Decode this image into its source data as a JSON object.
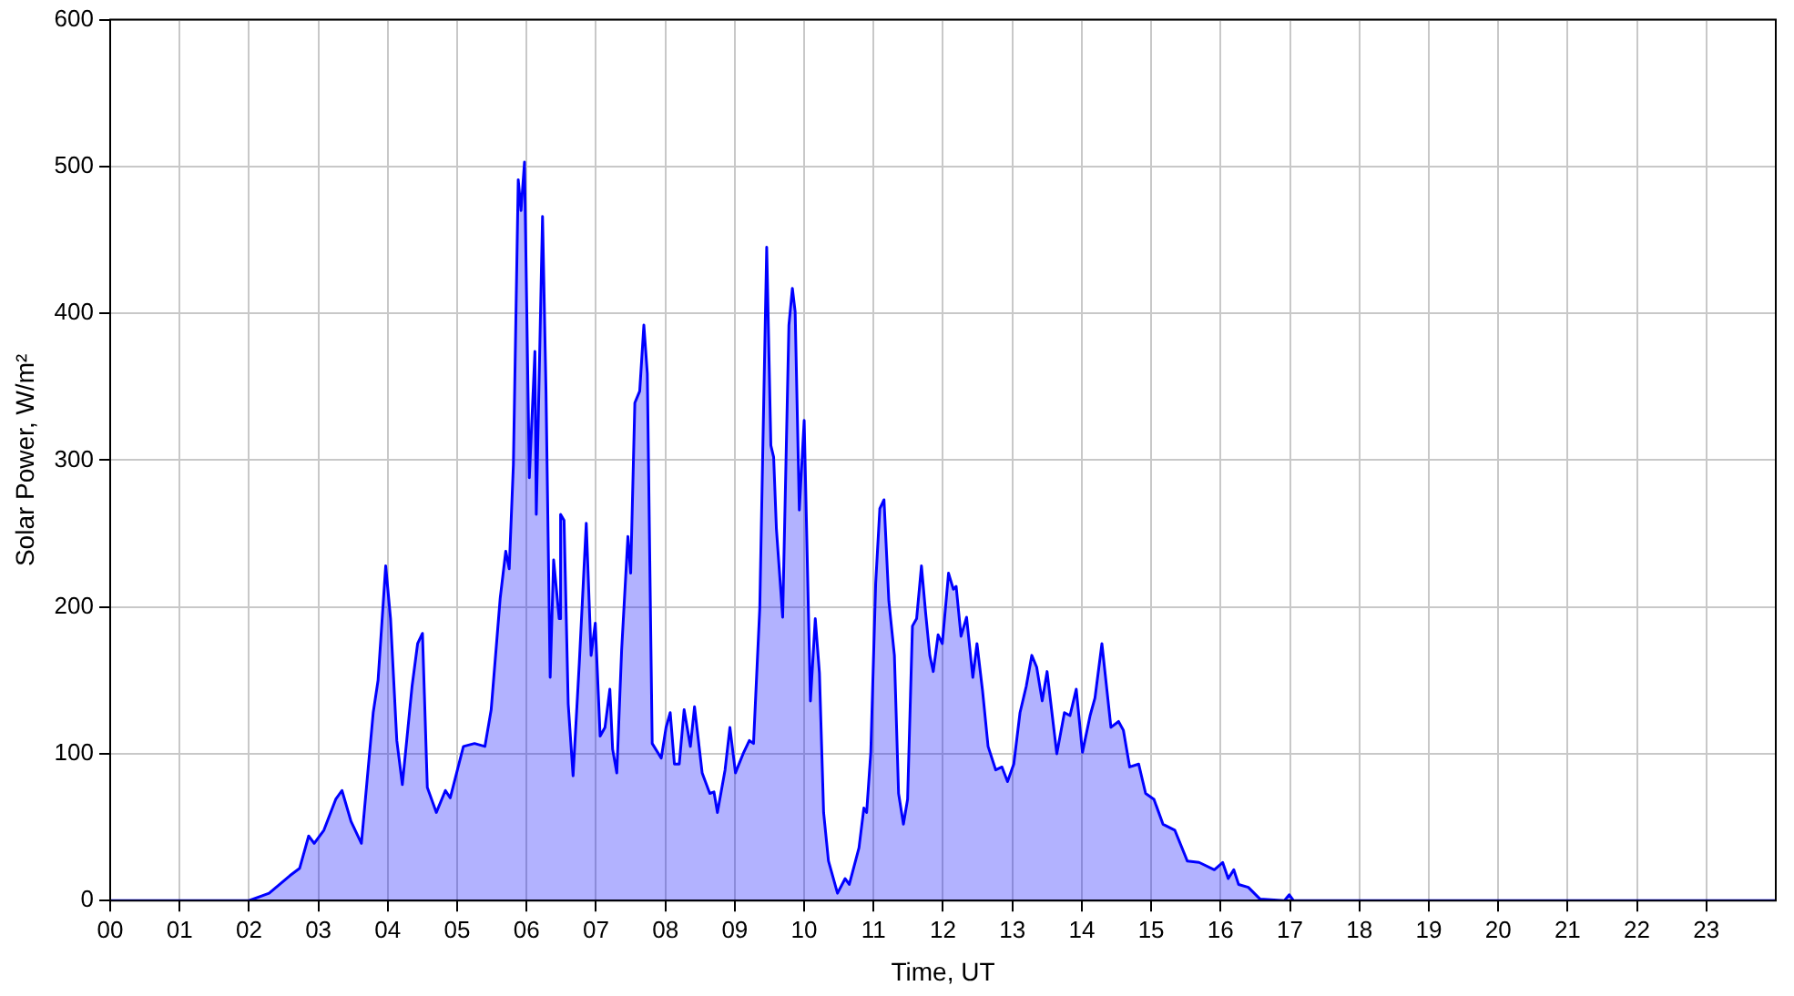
{
  "chart_data": {
    "type": "area",
    "xlabel": "Time, UT",
    "ylabel": "Solar Power, W/m²",
    "xlim": [
      0,
      24
    ],
    "ylim": [
      0,
      600
    ],
    "xticks": [
      {
        "value": 0,
        "label": "00"
      },
      {
        "value": 1,
        "label": "01"
      },
      {
        "value": 2,
        "label": "02"
      },
      {
        "value": 3,
        "label": "03"
      },
      {
        "value": 4,
        "label": "04"
      },
      {
        "value": 5,
        "label": "05"
      },
      {
        "value": 6,
        "label": "06"
      },
      {
        "value": 7,
        "label": "07"
      },
      {
        "value": 8,
        "label": "08"
      },
      {
        "value": 9,
        "label": "09"
      },
      {
        "value": 10,
        "label": "10"
      },
      {
        "value": 11,
        "label": "11"
      },
      {
        "value": 12,
        "label": "12"
      },
      {
        "value": 13,
        "label": "13"
      },
      {
        "value": 14,
        "label": "14"
      },
      {
        "value": 15,
        "label": "15"
      },
      {
        "value": 16,
        "label": "16"
      },
      {
        "value": 17,
        "label": "17"
      },
      {
        "value": 18,
        "label": "18"
      },
      {
        "value": 19,
        "label": "19"
      },
      {
        "value": 20,
        "label": "20"
      },
      {
        "value": 21,
        "label": "21"
      },
      {
        "value": 22,
        "label": "22"
      },
      {
        "value": 23,
        "label": "23"
      }
    ],
    "yticks": [
      0,
      100,
      200,
      300,
      400,
      500,
      600
    ],
    "grid": true,
    "legend": false,
    "marker": "none",
    "line_style": "solid",
    "series": [
      {
        "color": "#0000ff",
        "x": [
          0,
          2,
          2.29,
          2.59,
          2.73,
          2.86,
          2.94,
          3.08,
          3.25,
          3.34,
          3.47,
          3.62,
          3.79,
          3.86,
          3.97,
          4.04,
          4.13,
          4.21,
          4.35,
          4.43,
          4.5,
          4.57,
          4.7,
          4.83,
          4.9,
          5.09,
          5.25,
          5.4,
          5.49,
          5.62,
          5.7,
          5.75,
          5.81,
          5.88,
          5.92,
          5.97,
          6.04,
          6.12,
          6.14,
          6.23,
          6.28,
          6.34,
          6.39,
          6.47,
          6.49,
          6.54,
          6.6,
          6.67,
          6.76,
          6.86,
          6.93,
          6.99,
          7.06,
          7.13,
          7.2,
          7.24,
          7.3,
          7.37,
          7.46,
          7.5,
          7.56,
          7.63,
          7.69,
          7.74,
          7.81,
          7.94,
          8.01,
          8.07,
          8.13,
          8.2,
          8.27,
          8.36,
          8.42,
          8.53,
          8.64,
          8.7,
          8.75,
          8.86,
          8.93,
          9.01,
          9.12,
          9.21,
          9.27,
          9.36,
          9.46,
          9.52,
          9.56,
          9.6,
          9.69,
          9.78,
          9.83,
          9.87,
          9.93,
          10,
          10.09,
          10.16,
          10.22,
          10.28,
          10.35,
          10.48,
          10.59,
          10.65,
          10.79,
          10.86,
          10.9,
          10.96,
          11.03,
          11.09,
          11.15,
          11.22,
          11.3,
          11.36,
          11.43,
          11.49,
          11.56,
          11.62,
          11.69,
          11.75,
          11.81,
          11.86,
          11.93,
          11.99,
          12.08,
          12.15,
          12.19,
          12.26,
          12.34,
          12.43,
          12.49,
          12.57,
          12.65,
          12.76,
          12.85,
          12.93,
          13.02,
          13.11,
          13.2,
          13.28,
          13.35,
          13.43,
          13.5,
          13.64,
          13.75,
          13.83,
          13.92,
          14.01,
          14.12,
          14.19,
          14.29,
          14.42,
          14.53,
          14.6,
          14.69,
          14.82,
          14.92,
          15.04,
          15.17,
          15.34,
          15.52,
          15.69,
          15.91,
          16.03,
          16.11,
          16.19,
          16.26,
          16.4,
          16.57,
          16.92,
          16.99,
          17.05,
          24
        ],
        "values": [
          0,
          0,
          5,
          17,
          22,
          44,
          39,
          48,
          69,
          75,
          54,
          39,
          128,
          150,
          228,
          192,
          109,
          79,
          146,
          175,
          182,
          77,
          60,
          75,
          70,
          105,
          107,
          105,
          130,
          206,
          238,
          226,
          297,
          491,
          470,
          503,
          288,
          374,
          263,
          466,
          347,
          152,
          232,
          192,
          263,
          259,
          134,
          85,
          162,
          257,
          167,
          189,
          112,
          118,
          144,
          103,
          87,
          171,
          248,
          223,
          339,
          347,
          392,
          359,
          107,
          97,
          118,
          128,
          93,
          93,
          130,
          105,
          132,
          87,
          73,
          74,
          60,
          89,
          118,
          87,
          100,
          109,
          107,
          199,
          445,
          310,
          302,
          253,
          193,
          392,
          417,
          401,
          266,
          327,
          136,
          192,
          155,
          60,
          27,
          5,
          15,
          11,
          36,
          63,
          60,
          101,
          216,
          267,
          273,
          204,
          167,
          73,
          52,
          69,
          187,
          192,
          228,
          196,
          167,
          156,
          181,
          175,
          223,
          212,
          214,
          180,
          193,
          152,
          175,
          143,
          105,
          89,
          91,
          81,
          93,
          128,
          146,
          167,
          159,
          136,
          156,
          100,
          128,
          126,
          144,
          101,
          126,
          138,
          175,
          118,
          122,
          116,
          91,
          93,
          73,
          69,
          52,
          48,
          27,
          26,
          21,
          26,
          15,
          21,
          11,
          9,
          1,
          0,
          4,
          0,
          0
        ]
      }
    ]
  }
}
